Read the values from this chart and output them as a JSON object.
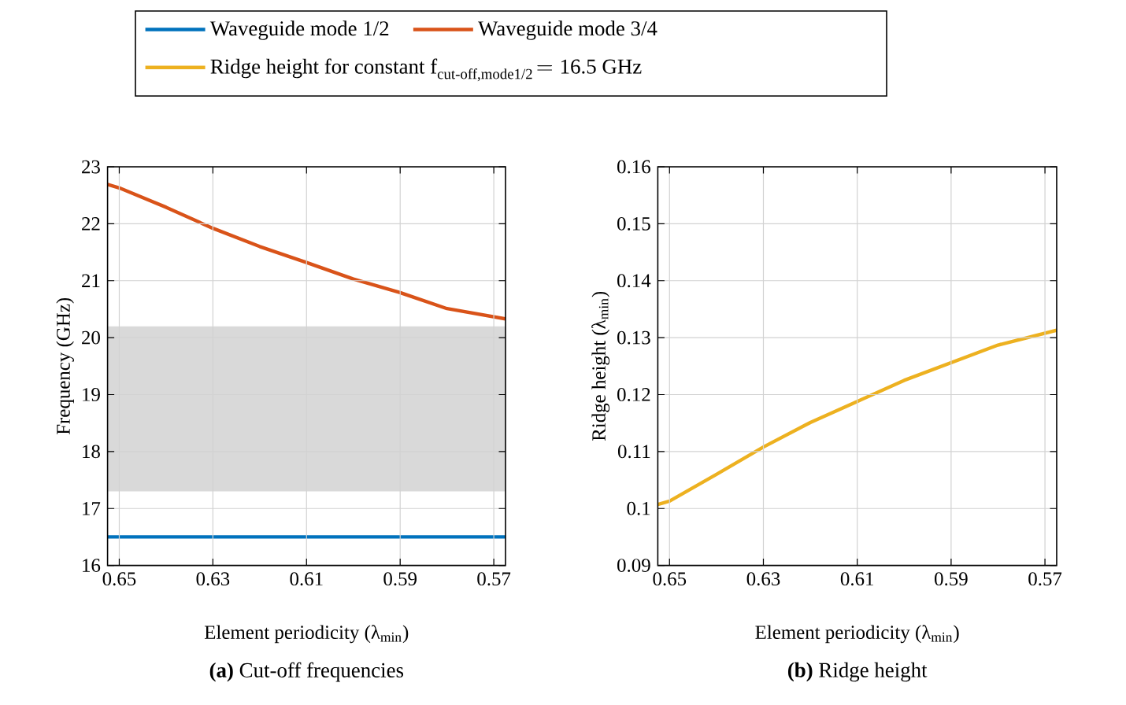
{
  "chart_data": [
    {
      "type": "line",
      "title": "**(a)** Cut-off frequencies",
      "xlabel": "Element periodicity (λ$_{min}$)",
      "ylabel": "Frequency (GHz)",
      "x": [
        0.6525,
        0.65,
        0.64,
        0.63,
        0.62,
        0.61,
        0.6,
        0.59,
        0.58,
        0.5675
      ],
      "series": [
        {
          "name": "Waveguide mode 1/2",
          "color": "#0072bd",
          "values": [
            16.5,
            16.5,
            16.5,
            16.5,
            16.5,
            16.5,
            16.5,
            16.5,
            16.5,
            16.5
          ]
        },
        {
          "name": "Waveguide mode 3/4",
          "color": "#d95319",
          "values": [
            22.69,
            22.63,
            22.29,
            21.92,
            21.6,
            21.32,
            21.03,
            20.79,
            20.51,
            20.33
          ]
        }
      ],
      "bands": [
        {
          "axis": "y",
          "from": 17.3,
          "to": 20.2,
          "color": "#d9d9d9"
        }
      ],
      "xlim": [
        0.6525,
        0.5675
      ],
      "xticks": [
        0.65,
        0.63,
        0.61,
        0.59,
        0.57
      ],
      "ylim": [
        16,
        23
      ],
      "yticks": [
        16,
        17,
        18,
        19,
        20,
        21,
        22,
        23
      ],
      "grid": true,
      "legend": "top"
    },
    {
      "type": "line",
      "title": "**(b)** Ridge height",
      "xlabel": "Element periodicity (λ$_{min}$)",
      "ylabel": "Ridge height (λ$_{min}$)",
      "x": [
        0.6525,
        0.65,
        0.64,
        0.63,
        0.62,
        0.61,
        0.6,
        0.59,
        0.58,
        0.5675
      ],
      "series": [
        {
          "name": "\\text{Ridge height for constant f}_{\\text{cut-off,mode1/2}}\\!=\\text{16.5 GHz}",
          "color": "#edb120",
          "values": [
            0.1007,
            0.1013,
            0.106,
            0.1108,
            0.1151,
            0.1188,
            0.1225,
            0.1256,
            0.1287,
            0.1313
          ]
        }
      ],
      "xlim": [
        0.6525,
        0.5675
      ],
      "xticks": [
        0.65,
        0.63,
        0.61,
        0.59,
        0.57
      ],
      "ylim": [
        0.09,
        0.16
      ],
      "yticks": [
        0.09,
        0.1,
        0.11,
        0.12,
        0.13,
        0.14,
        0.15,
        0.16
      ],
      "grid": true,
      "legend": "top"
    }
  ]
}
